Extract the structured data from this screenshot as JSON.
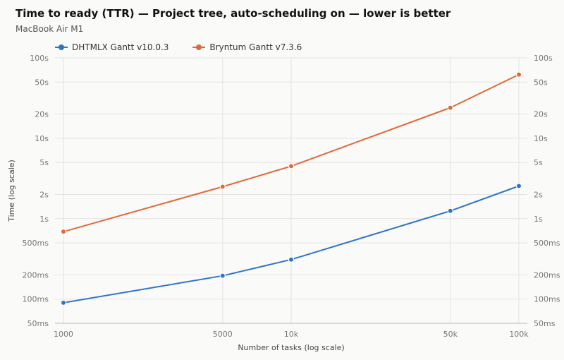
{
  "chart_data": {
    "type": "line",
    "title": "Time to ready (TTR) — Project tree, auto-scheduling on — lower is better",
    "subtitle": "MacBook Air M1",
    "xlabel": "Number of tasks (log scale)",
    "ylabel": "Time (log scale)",
    "x_scale": "log",
    "y_scale": "log",
    "x": [
      1000,
      5000,
      10000,
      50000,
      100000
    ],
    "x_tick_values": [
      1000,
      5000,
      10000,
      50000,
      100000
    ],
    "x_tick_labels": [
      "1000",
      "5000",
      "10k",
      "50k",
      "100k"
    ],
    "y_unit": "ms",
    "ylim": [
      50,
      100000
    ],
    "y_tick_values": [
      50,
      100,
      200,
      500,
      1000,
      2000,
      5000,
      10000,
      20000,
      50000,
      100000
    ],
    "y_tick_labels": [
      "50ms",
      "100ms",
      "200ms",
      "500ms",
      "1s",
      "2s",
      "5s",
      "10s",
      "20s",
      "50s",
      "100s"
    ],
    "grid": true,
    "legend_position": "top-left",
    "series": [
      {
        "name": "DHTMLX Gantt v10.0.3",
        "color": "#2f74c8",
        "values": [
          90,
          195,
          310,
          1250,
          2550
        ]
      },
      {
        "name": "Bryntum Gantt v7.3.6",
        "color": "#e0693a",
        "values": [
          690,
          2500,
          4500,
          24000,
          62000
        ]
      }
    ]
  }
}
